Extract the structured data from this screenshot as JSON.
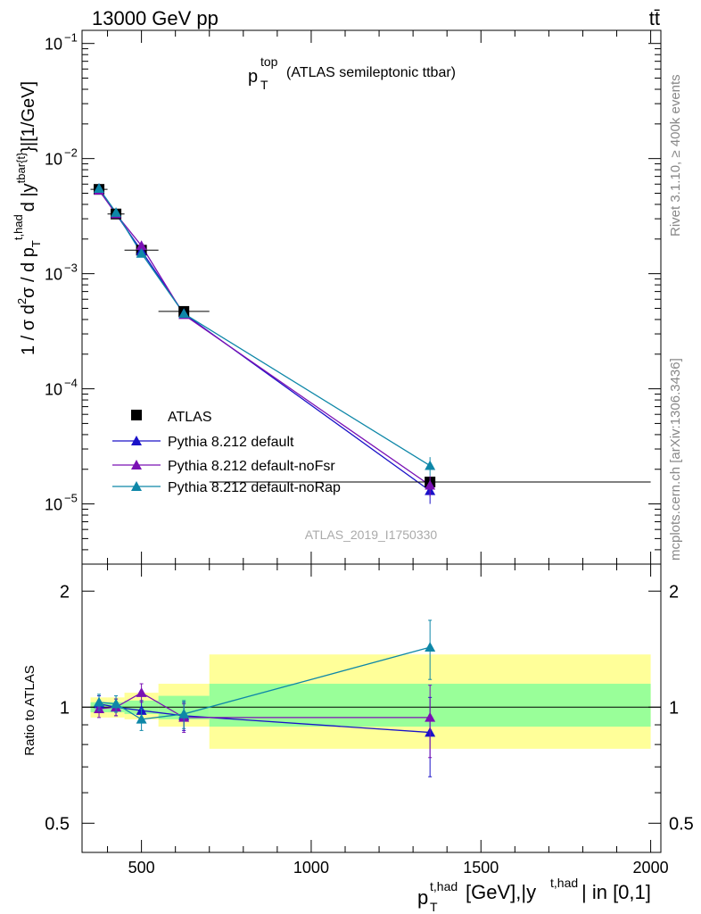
{
  "header": {
    "energy_label": "13000 GeV pp",
    "process_label": "tt̄"
  },
  "side": {
    "rivet_label": "Rivet 3.1.10, ≥ 400k events",
    "site_label": "mcplots.cern.ch [arXiv:1306.3436]"
  },
  "colors": {
    "atlas": "#000000",
    "default": "#1a12c8",
    "noFsr": "#7a10b4",
    "noRap": "#0e87a8",
    "band_outer": "#ffff99",
    "band_inner": "#99ff99"
  },
  "chart_data": [
    {
      "type": "line",
      "scale": "log",
      "title_main": "p",
      "title_sup": "top",
      "title_sub": "T",
      "title_rest": "(ATLAS semileptonic ttbar)",
      "ylabel": "1 / σ d²σ / d p_T^{t,had} d |y^{tbar{t}}|[1/GeV]",
      "ylabel_parts": {
        "p1": "1 / σ d",
        "sup2": "2",
        "p2": "σ / d p",
        "sub_T": "T",
        "sup_thad": "t,had",
        "p3": "d |y",
        "sup_tbar": "tbar{t}",
        "p4": "}|[1/GeV]"
      },
      "xlim": [
        325,
        2030
      ],
      "ylim": [
        3e-06,
        0.13
      ],
      "ticks": [
        {
          "value": 1e-05,
          "base": "10",
          "exp": "−5"
        },
        {
          "value": 0.0001,
          "base": "10",
          "exp": "−4"
        },
        {
          "value": 0.001,
          "base": "10",
          "exp": "−3"
        },
        {
          "value": 0.01,
          "base": "10",
          "exp": "−2"
        },
        {
          "value": 0.1,
          "base": "10",
          "exp": "−1"
        }
      ],
      "watermark": "ATLAS_2019_I1750330",
      "legend_position": "bottom-left",
      "series": [
        {
          "name": "ATLAS",
          "key": "atlas",
          "marker": "square",
          "x": [
            375,
            425,
            500,
            625,
            1350
          ],
          "y": [
            0.0054,
            0.0033,
            0.0016,
            0.00047,
            1.55e-05
          ],
          "xerr": [
            25,
            25,
            50,
            75,
            650
          ]
        },
        {
          "name": "Pythia 8.212 default",
          "key": "default",
          "marker": "triangle",
          "x": [
            375,
            425,
            500,
            625,
            1350
          ],
          "y": [
            0.0055,
            0.0033,
            0.00158,
            0.00045,
            1.3e-05
          ],
          "err": [
            0.00022,
            0.00015,
            9e-05,
            3e-05,
            3e-06
          ]
        },
        {
          "name": "Pythia 8.212 default-noFsr",
          "key": "noFsr",
          "marker": "triangle",
          "x": [
            375,
            425,
            500,
            625,
            1350
          ],
          "y": [
            0.0053,
            0.0033,
            0.00175,
            0.00044,
            1.45e-05
          ],
          "err": [
            0.00022,
            0.00015,
            0.0001,
            3e-05,
            3e-06
          ]
        },
        {
          "name": "Pythia 8.212 default-noRap",
          "key": "noRap",
          "marker": "triangle",
          "x": [
            375,
            425,
            500,
            625,
            1350
          ],
          "y": [
            0.0055,
            0.0034,
            0.0015,
            0.00045,
            2.15e-05
          ],
          "err": [
            0.00022,
            0.00015,
            9e-05,
            3e-05,
            4e-06
          ]
        }
      ]
    },
    {
      "type": "line",
      "scale": "log",
      "ylabel": "Ratio to ATLAS",
      "xlabel_main": "p",
      "xlabel_sup": "t,had",
      "xlabel_sub": "T",
      "xlabel_rest": "[GeV],|y",
      "xlabel_sup2": "t,had",
      "xlabel_end": "| in [0,1]",
      "xlim": [
        325,
        2030
      ],
      "ylim": [
        0.42,
        2.35
      ],
      "xticks": [
        500,
        1000,
        1500,
        2000
      ],
      "yticks": [
        {
          "value": 0.5,
          "label": "0.5"
        },
        {
          "value": 1,
          "label": "1"
        },
        {
          "value": 2,
          "label": "2"
        }
      ],
      "bands": [
        {
          "x0": 350,
          "x1": 400,
          "outer": [
            0.94,
            1.06
          ],
          "inner": [
            0.97,
            1.03
          ]
        },
        {
          "x0": 400,
          "x1": 450,
          "outer": [
            0.94,
            1.06
          ],
          "inner": [
            0.97,
            1.03
          ]
        },
        {
          "x0": 450,
          "x1": 550,
          "outer": [
            0.93,
            1.09
          ],
          "inner": [
            0.96,
            1.04
          ]
        },
        {
          "x0": 550,
          "x1": 700,
          "outer": [
            0.89,
            1.15
          ],
          "inner": [
            0.93,
            1.07
          ]
        },
        {
          "x0": 700,
          "x1": 2000,
          "outer": [
            0.78,
            1.37
          ],
          "inner": [
            0.89,
            1.15
          ]
        }
      ],
      "series": [
        {
          "name": "Pythia 8.212 default",
          "key": "default",
          "x": [
            375,
            425,
            500,
            625,
            1350
          ],
          "y": [
            1.02,
            1.0,
            0.98,
            0.95,
            0.86
          ],
          "err": [
            0.05,
            0.05,
            0.06,
            0.08,
            0.2
          ]
        },
        {
          "name": "Pythia 8.212 default-noFsr",
          "key": "noFsr",
          "x": [
            375,
            425,
            500,
            625,
            1350
          ],
          "y": [
            0.99,
            1.0,
            1.09,
            0.94,
            0.94
          ],
          "err": [
            0.05,
            0.05,
            0.06,
            0.08,
            0.2
          ]
        },
        {
          "name": "Pythia 8.212 default-noRap",
          "key": "noRap",
          "x": [
            375,
            425,
            500,
            625,
            1350
          ],
          "y": [
            1.03,
            1.02,
            0.93,
            0.96,
            1.43
          ],
          "err": [
            0.05,
            0.05,
            0.06,
            0.08,
            0.25
          ]
        }
      ]
    }
  ]
}
